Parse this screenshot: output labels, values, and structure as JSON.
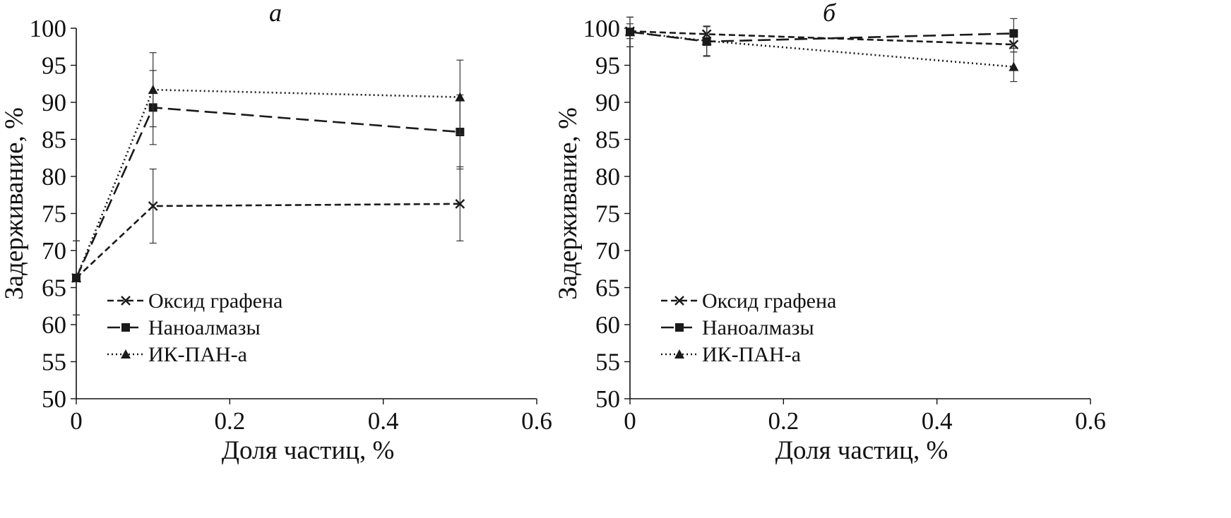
{
  "chart_data": [
    {
      "type": "line",
      "title": "а",
      "xlabel": "Доля частиц, %",
      "ylabel": "Задерживание, %",
      "xlim": [
        0,
        0.6
      ],
      "ylim": [
        50,
        100
      ],
      "x_ticks": [
        "0",
        "0.2",
        "0.4",
        "0.6"
      ],
      "y_ticks": [
        "50",
        "55",
        "60",
        "65",
        "70",
        "75",
        "80",
        "85",
        "90",
        "95",
        "100"
      ],
      "grid": false,
      "legend_position": "lower-left",
      "series": [
        {
          "name": "Оксид графена",
          "marker": "x",
          "line": "short-dash",
          "x": [
            0,
            0.1,
            0.5
          ],
          "y": [
            66.3,
            76.0,
            76.3
          ],
          "err": [
            5.0,
            5.0,
            5.0
          ]
        },
        {
          "name": "Наноалмазы",
          "marker": "square",
          "line": "long-dash",
          "x": [
            0,
            0.1,
            0.5
          ],
          "y": [
            66.3,
            89.3,
            86.0
          ],
          "err": [
            5.0,
            5.0,
            5.0
          ]
        },
        {
          "name": "ИК-ПАН-а",
          "marker": "triangle",
          "line": "dotted",
          "x": [
            0,
            0.1,
            0.5
          ],
          "y": [
            66.3,
            91.7,
            90.7
          ],
          "err": [
            5.0,
            5.0,
            5.0
          ]
        }
      ]
    },
    {
      "type": "line",
      "title": "б",
      "xlabel": "Доля частиц, %",
      "ylabel": "Задерживание, %",
      "xlim": [
        0,
        0.6
      ],
      "ylim": [
        50,
        100
      ],
      "x_ticks": [
        "0",
        "0.2",
        "0.4",
        "0.6"
      ],
      "y_ticks": [
        "50",
        "55",
        "60",
        "65",
        "70",
        "75",
        "80",
        "85",
        "90",
        "95",
        "100"
      ],
      "grid": false,
      "legend_position": "lower-left",
      "series": [
        {
          "name": "Оксид графена",
          "marker": "x",
          "line": "short-dash",
          "x": [
            0,
            0.1,
            0.5
          ],
          "y": [
            99.6,
            99.2,
            97.8
          ],
          "err": [
            1.0,
            1.0,
            1.0
          ]
        },
        {
          "name": "Наноалмазы",
          "marker": "square",
          "line": "long-dash",
          "x": [
            0,
            0.1,
            0.5
          ],
          "y": [
            99.5,
            98.2,
            99.3
          ],
          "err": [
            2.0,
            2.0,
            2.0
          ]
        },
        {
          "name": "ИК-ПАН-а",
          "marker": "triangle",
          "line": "dotted",
          "x": [
            0,
            0.1,
            0.5
          ],
          "y": [
            99.5,
            98.3,
            94.8
          ],
          "err": [
            2.0,
            2.0,
            2.0
          ]
        }
      ]
    }
  ]
}
